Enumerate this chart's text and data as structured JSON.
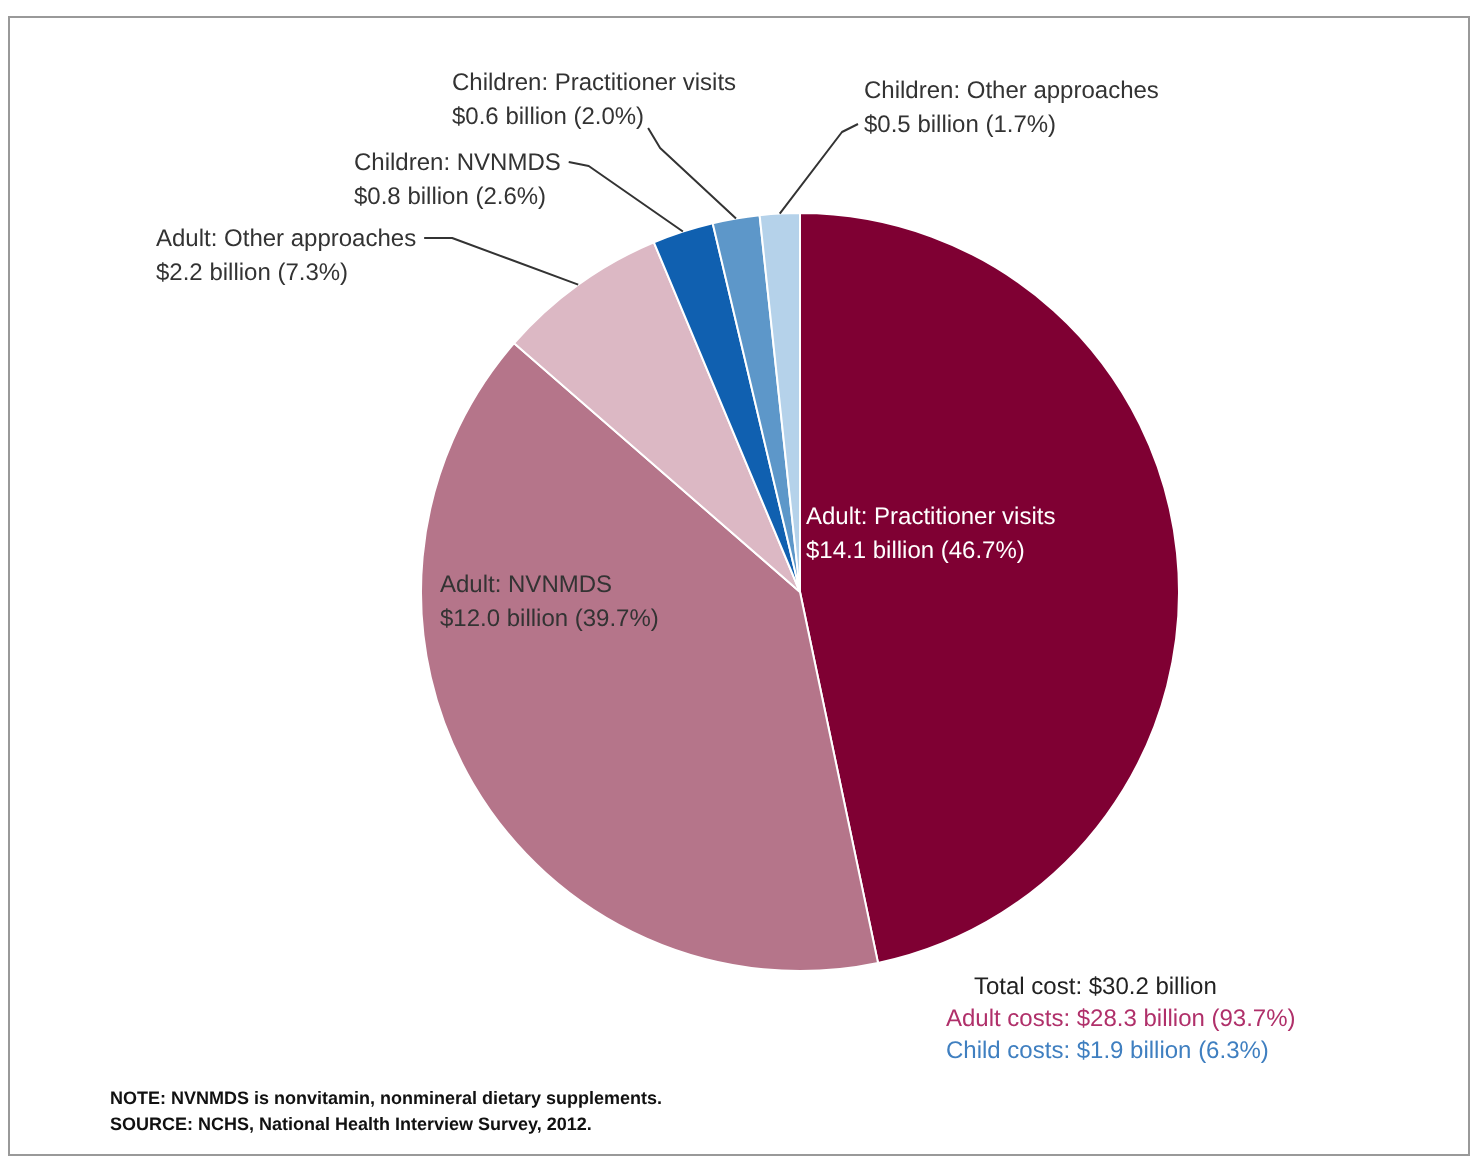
{
  "chart_data": {
    "type": "pie",
    "categories": [
      "Adult: Practitioner visits",
      "Adult: NVNMDS",
      "Adult: Other approaches",
      "Children: NVNMDS",
      "Children: Practitioner visits",
      "Children: Other approaches"
    ],
    "values": [
      46.7,
      39.7,
      7.3,
      2.6,
      2.0,
      1.7
    ],
    "value_labels": [
      "$14.1 billion (46.7%)",
      "$12.0 billion (39.7%)",
      "$2.2 billion (7.3%)",
      "$0.8 billion (2.6%)",
      "$0.6 billion (2.0%)",
      "$0.5 billion (1.7%)"
    ],
    "colors": [
      "#7f0033",
      "#b5758a",
      "#dcb8c4",
      "#1060b0",
      "#5d97c9",
      "#b5d2ea"
    ],
    "annotations": [
      "Total cost: $30.2 billion",
      "Adult costs: $28.3 billion (93.7%)",
      "Child costs: $1.9 billion (6.3%)",
      "NOTE: NVNMDS is nonvitamin, nonmineral dietary supplements.",
      "SOURCE: NCHS, National Health Interview Survey, 2012."
    ],
    "legend": false
  }
}
